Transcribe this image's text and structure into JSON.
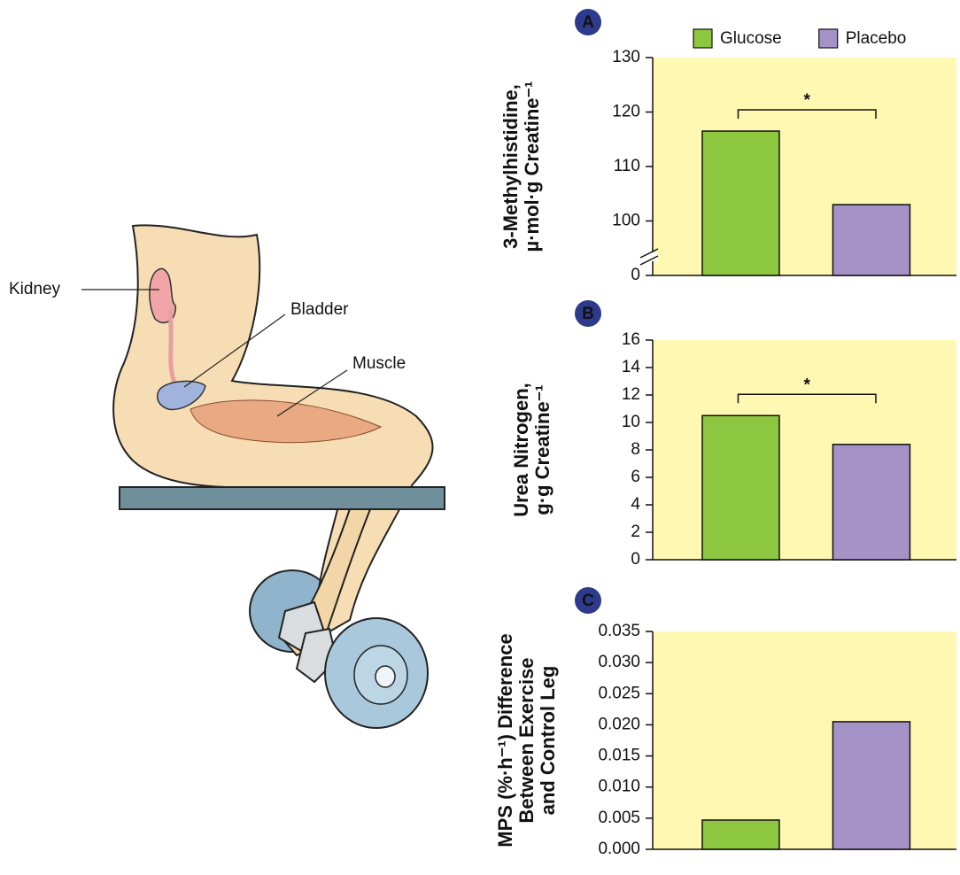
{
  "illustration": {
    "labels": [
      "Kidney",
      "Bladder",
      "Muscle"
    ]
  },
  "chart_data": [
    {
      "type": "bar",
      "panel": "A",
      "ylabel": [
        "3-Methylhistidine,",
        "µ·mol·g Creatine⁻¹"
      ],
      "series": [
        {
          "name": "Glucose",
          "color": "#8dc63f",
          "values": [
            116.5
          ]
        },
        {
          "name": "Placebo",
          "color": "#a592c6",
          "values": [
            103
          ]
        }
      ],
      "ylim": [
        0,
        130
      ],
      "axis_break": [
        0,
        90
      ],
      "yticks": [
        0,
        100,
        110,
        120,
        130
      ],
      "annotation": "*",
      "legend": "top",
      "background": "#fff8b3"
    },
    {
      "type": "bar",
      "panel": "B",
      "ylabel": [
        "Urea Nitrogen,",
        "g·g Creatine⁻¹"
      ],
      "series": [
        {
          "color": "#8dc63f",
          "values": [
            10.5
          ]
        },
        {
          "color": "#a592c6",
          "values": [
            8.4
          ]
        }
      ],
      "ylim": [
        0,
        16
      ],
      "yticks": [
        0,
        2,
        4,
        6,
        8,
        10,
        12,
        14,
        16
      ],
      "annotation": "*",
      "background": "#fff8b3"
    },
    {
      "type": "bar",
      "panel": "C",
      "ylabel": [
        "MPS (%·h⁻¹) Difference",
        "Between Exercise",
        "and Control Leg"
      ],
      "series": [
        {
          "color": "#8dc63f",
          "values": [
            0.0047
          ]
        },
        {
          "color": "#a592c6",
          "values": [
            0.0205
          ]
        }
      ],
      "ylim": [
        0,
        0.035
      ],
      "yticks": [
        {
          "value": 0,
          "label": "0.000"
        },
        0.005,
        {
          "value": 0.01,
          "label": "0.010"
        },
        0.015,
        {
          "value": 0.02,
          "label": "0.020"
        },
        0.025,
        {
          "value": 0.03,
          "label": "0.030"
        },
        0.035
      ],
      "background": "#fff8b3"
    }
  ]
}
